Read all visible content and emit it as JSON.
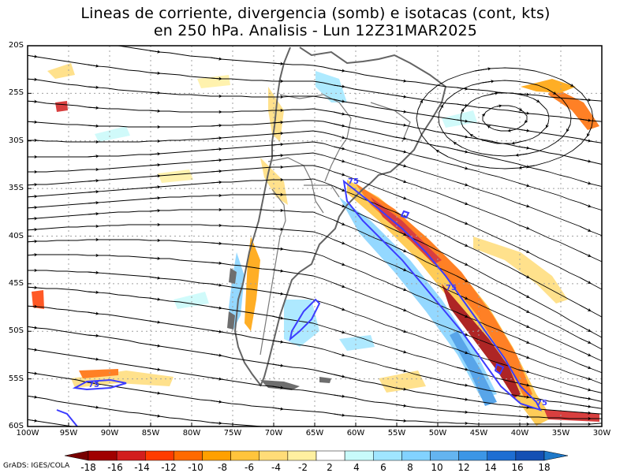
{
  "title_line1": "Lineas de corriente, divergencia (somb) e isotacas (cont, kts)",
  "title_line2": "en 250 hPa. Analisis - Lun 12Z31MAR2025",
  "credit": "GrADS: IGES/COLA",
  "isotach_label": "75",
  "lat_labels": [
    "20S",
    "25S",
    "30S",
    "35S",
    "40S",
    "45S",
    "50S",
    "55S",
    "60S"
  ],
  "lon_labels": [
    "100W",
    "95W",
    "90W",
    "85W",
    "80W",
    "75W",
    "70W",
    "65W",
    "60W",
    "55W",
    "50W",
    "45W",
    "40W",
    "35W",
    "30W"
  ],
  "colorbar": {
    "labels": [
      "-18",
      "-16",
      "-14",
      "-12",
      "-10",
      "-8",
      "-6",
      "-4",
      "-2",
      "2",
      "4",
      "6",
      "8",
      "10",
      "12",
      "14",
      "16",
      "18"
    ],
    "colors": [
      "#a00000",
      "#d21e1e",
      "#ff3c00",
      "#ff6a00",
      "#ffa000",
      "#ffc43c",
      "#ffdc78",
      "#fff0a0",
      "#ffffff",
      "#c8fafa",
      "#a0e6ff",
      "#82d2ff",
      "#64b4f0",
      "#3c96e6",
      "#1e6ed2",
      "#1450b4"
    ]
  },
  "colors": {
    "coast": "#646464",
    "streamline": "#000000",
    "isotach": "#3c3cff",
    "grid": "#a0a0a0"
  }
}
